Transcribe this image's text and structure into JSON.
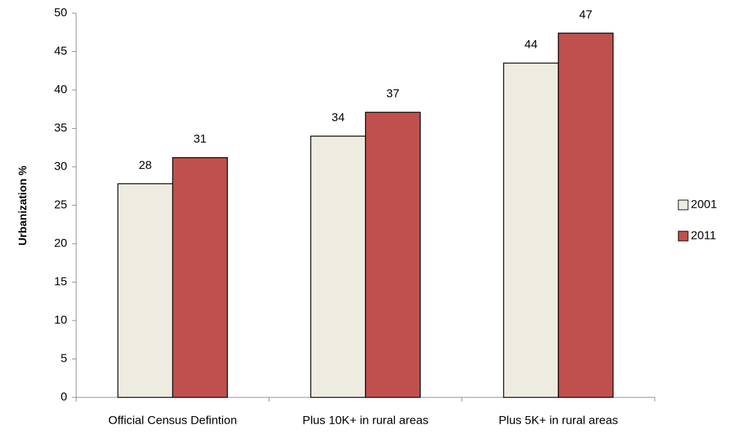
{
  "chart_data": {
    "type": "bar",
    "y_label": "Urbanization %",
    "categories": [
      "Official Census Defintion",
      "Plus 10K+ in rural areas",
      "Plus 5K+ in rural areas"
    ],
    "series": [
      {
        "name": "2001",
        "color": "#eeece1",
        "values": [
          27.8,
          34.0,
          43.5
        ],
        "value_labels": [
          "28",
          "34",
          "44"
        ]
      },
      {
        "name": "2011",
        "color": "#c0504d",
        "values": [
          31.2,
          37.1,
          47.4
        ],
        "value_labels": [
          "31",
          "37",
          "47"
        ]
      }
    ],
    "ylim": [
      0,
      50
    ],
    "yticks": [
      0,
      5,
      10,
      15,
      20,
      25,
      30,
      35,
      40,
      45,
      50
    ],
    "grid": false,
    "legend": "right"
  }
}
